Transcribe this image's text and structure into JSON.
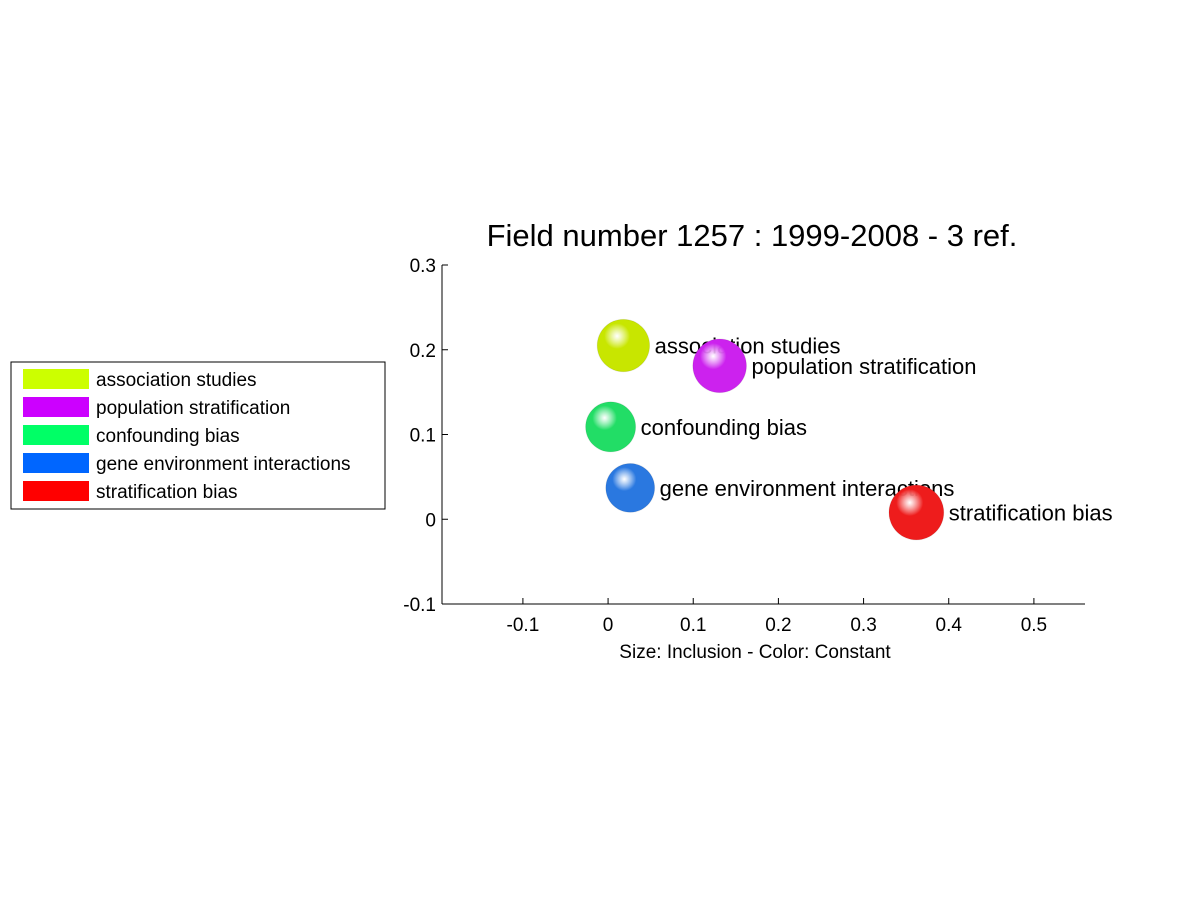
{
  "chart_data": {
    "type": "scatter",
    "title": "Field number 1257 : 1999-2008  - 3 ref.",
    "xlabel": "Size: Inclusion - Color: Constant",
    "ylabel": "",
    "xlim": [
      -0.195,
      0.56
    ],
    "ylim": [
      -0.1,
      0.3
    ],
    "xticks": [
      -0.1,
      0,
      0.1,
      0.2,
      0.3,
      0.4,
      0.5
    ],
    "xtick_labels": [
      "-0.1",
      "0",
      "0.1",
      "0.2",
      "0.3",
      "0.4",
      "0.5"
    ],
    "yticks": [
      -0.1,
      0,
      0.1,
      0.2,
      0.3
    ],
    "ytick_labels": [
      "-0.1",
      "0",
      "0.1",
      "0.2",
      "0.3"
    ],
    "grid": false,
    "legend_position": "left",
    "points": [
      {
        "label": "association studies",
        "x": 0.018,
        "y": 0.205,
        "size": 0.6,
        "color": "#c8e600"
      },
      {
        "label": "population stratification",
        "x": 0.131,
        "y": 0.181,
        "size": 0.65,
        "color": "#cc22ee"
      },
      {
        "label": "confounding bias",
        "x": 0.003,
        "y": 0.109,
        "size": 0.5,
        "color": "#22dd66"
      },
      {
        "label": "gene environment interactions",
        "x": 0.026,
        "y": 0.037,
        "size": 0.45,
        "color": "#2a78e0"
      },
      {
        "label": "stratification bias",
        "x": 0.362,
        "y": 0.008,
        "size": 0.7,
        "color": "#ee1c1c"
      }
    ],
    "legend": [
      {
        "label": "association studies",
        "color": "#ccff00"
      },
      {
        "label": "population stratification",
        "color": "#cc00ff"
      },
      {
        "label": "confounding bias",
        "color": "#00ff66"
      },
      {
        "label": "gene environment interactions",
        "color": "#0066ff"
      },
      {
        "label": "stratification bias",
        "color": "#ff0000"
      }
    ]
  }
}
